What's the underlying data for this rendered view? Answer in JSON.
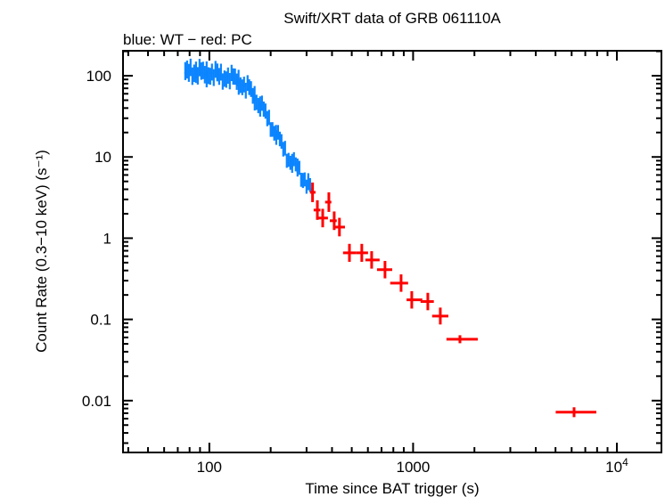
{
  "chart_data": {
    "type": "scatter",
    "title": "Swift/XRT data of GRB 061110A",
    "subtitle": "blue: WT − red: PC",
    "xlabel": "Time since BAT trigger (s)",
    "ylabel": "Count Rate (0.3−10 keV) (s⁻¹)",
    "xscale": "log",
    "yscale": "log",
    "xlim": [
      37.7,
      16550
    ],
    "ylim": [
      0.0023,
      203
    ],
    "grid": false,
    "x_ticks": [
      {
        "value": 100,
        "label": "100"
      },
      {
        "value": 1000,
        "label": "1000"
      },
      {
        "value": 10000,
        "label": "10",
        "sup": "4"
      }
    ],
    "y_ticks": [
      {
        "value": 0.01,
        "label": "0.01"
      },
      {
        "value": 0.1,
        "label": "0.1"
      },
      {
        "value": 1,
        "label": "1"
      },
      {
        "value": 10,
        "label": "10"
      },
      {
        "value": 100,
        "label": "100"
      }
    ],
    "series": [
      {
        "mode": "WT",
        "color": "#0a84ff",
        "points": [
          {
            "t": 76.2,
            "rate": 107.9,
            "f": 1.29
          },
          {
            "t": 80.9,
            "rate": 113.4,
            "f": 1.28
          },
          {
            "t": 86.0,
            "rate": 113.4,
            "f": 1.28
          },
          {
            "t": 91.3,
            "rate": 107.9,
            "f": 1.28
          },
          {
            "t": 97.0,
            "rate": 105.0,
            "f": 1.27
          },
          {
            "t": 103,
            "rate": 107.9,
            "f": 1.27
          },
          {
            "t": 109.5,
            "rate": 102.5,
            "f": 1.27
          },
          {
            "t": 116.3,
            "rate": 97.5,
            "f": 1.26
          },
          {
            "t": 123.5,
            "rate": 97.5,
            "f": 1.26
          },
          {
            "t": 131,
            "rate": 92.7,
            "f": 1.26
          },
          {
            "t": 139.4,
            "rate": 83.8,
            "f": 1.25
          },
          {
            "t": 148,
            "rate": 75.8,
            "f": 1.25
          },
          {
            "t": 157,
            "rate": 68.5,
            "f": 1.25
          },
          {
            "t": 167,
            "rate": 53.2,
            "f": 1.24
          },
          {
            "t": 177.6,
            "rate": 43.5,
            "f": 1.24
          },
          {
            "t": 188.6,
            "rate": 33.8,
            "f": 1.24
          },
          {
            "t": 200,
            "rate": 25.0,
            "f": 1.23
          },
          {
            "t": 213,
            "rate": 19.4,
            "f": 1.23
          },
          {
            "t": 226,
            "rate": 14.3,
            "f": 1.23
          },
          {
            "t": 240,
            "rate": 10.3,
            "f": 1.22
          },
          {
            "t": 255,
            "rate": 8.7,
            "f": 1.22
          },
          {
            "t": 271,
            "rate": 7.2,
            "f": 1.22
          },
          {
            "t": 288,
            "rate": 5.5,
            "f": 1.22
          },
          {
            "t": 306,
            "rate": 4.5,
            "f": 1.22
          },
          {
            "t": 315,
            "rate": 4.0,
            "f": 1.22
          }
        ]
      },
      {
        "mode": "PC",
        "color": "#ff0000",
        "points": [
          {
            "t": 321,
            "tlo": 312,
            "thi": 332,
            "rate": 3.67,
            "f": 1.32
          },
          {
            "t": 339,
            "tlo": 325,
            "thi": 351,
            "rate": 2.22,
            "f": 1.32
          },
          {
            "t": 360,
            "tlo": 335,
            "thi": 382,
            "rate": 1.77,
            "f": 1.3
          },
          {
            "t": 386,
            "tlo": 370,
            "thi": 397,
            "rate": 2.78,
            "f": 1.32
          },
          {
            "t": 410,
            "tlo": 390,
            "thi": 422,
            "rate": 1.64,
            "f": 1.3
          },
          {
            "t": 435,
            "tlo": 414,
            "thi": 463,
            "rate": 1.37,
            "f": 1.3
          },
          {
            "t": 487,
            "tlo": 453,
            "thi": 527,
            "rate": 0.66,
            "f": 1.29
          },
          {
            "t": 560,
            "tlo": 527,
            "thi": 601,
            "rate": 0.66,
            "f": 1.29
          },
          {
            "t": 626,
            "tlo": 583,
            "thi": 685,
            "rate": 0.54,
            "f": 1.28
          },
          {
            "t": 728,
            "tlo": 665,
            "thi": 790,
            "rate": 0.41,
            "f": 1.28
          },
          {
            "t": 873,
            "tlo": 772,
            "thi": 945,
            "rate": 0.28,
            "f": 1.28
          },
          {
            "t": 985,
            "tlo": 929,
            "thi": 1110,
            "rate": 0.174,
            "f": 1.28
          },
          {
            "t": 1181,
            "tlo": 1088,
            "thi": 1264,
            "rate": 0.166,
            "f": 1.28
          },
          {
            "t": 1360,
            "tlo": 1240,
            "thi": 1490,
            "rate": 0.11,
            "f": 1.27
          },
          {
            "t": 1698,
            "tlo": 1458,
            "thi": 2077,
            "rate": 0.057,
            "f": 1.12
          },
          {
            "t": 6166,
            "tlo": 5011,
            "thi": 7930,
            "rate": 0.0072,
            "f": 1.15
          }
        ]
      }
    ]
  }
}
